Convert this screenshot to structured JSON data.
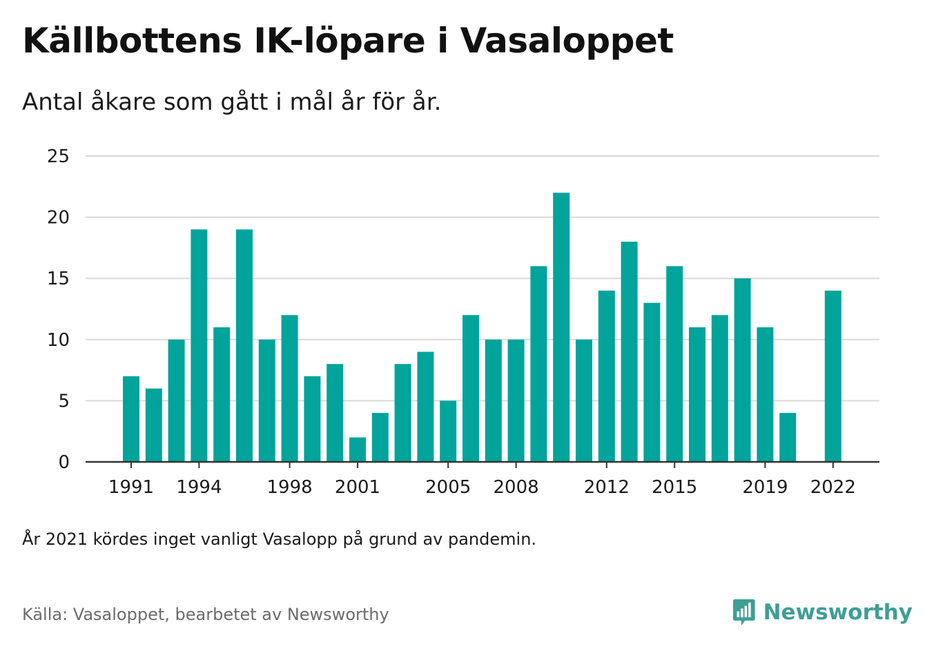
{
  "header": {
    "title": "Källbottens IK-löpare i Vasaloppet",
    "subtitle": "Antal åkare som gått i mål år för år."
  },
  "footer": {
    "note": "År 2021 kördes inget vanligt Vasalopp på grund av pandemin.",
    "source": "Källa: Vasaloppet, bearbetet av Newsworthy",
    "logo_text": "Newsworthy"
  },
  "colors": {
    "bar": "#00a49a",
    "grid": "#d9d9d9",
    "axis": "#333333",
    "brand": "#3f9e95"
  },
  "chart_data": {
    "type": "bar",
    "categories": [
      1991,
      1992,
      1993,
      1994,
      1995,
      1996,
      1997,
      1998,
      1999,
      2000,
      2001,
      2002,
      2003,
      2004,
      2005,
      2006,
      2007,
      2008,
      2009,
      2010,
      2011,
      2012,
      2013,
      2014,
      2015,
      2016,
      2017,
      2018,
      2019,
      2020,
      2021,
      2022
    ],
    "values": [
      7,
      6,
      10,
      19,
      11,
      19,
      10,
      12,
      7,
      8,
      2,
      4,
      8,
      9,
      5,
      12,
      10,
      10,
      16,
      22,
      10,
      14,
      18,
      13,
      16,
      11,
      12,
      15,
      11,
      4,
      null,
      14
    ],
    "x_tick_labels": [
      "1991",
      "1994",
      "1998",
      "2001",
      "2005",
      "2008",
      "2012",
      "2015",
      "2019",
      "2022"
    ],
    "y_ticks": [
      0,
      5,
      10,
      15,
      20,
      25
    ],
    "ylim": [
      0,
      25
    ],
    "grid": true,
    "xlabel": "",
    "ylabel": ""
  }
}
